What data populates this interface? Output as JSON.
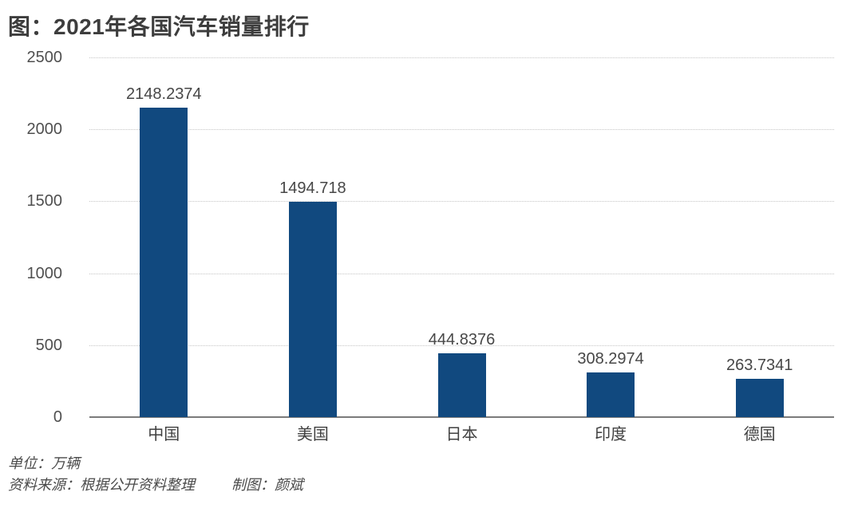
{
  "chart_data": {
    "type": "bar",
    "title": "图：2021年各国汽车销量排行",
    "categories": [
      "中国",
      "美国",
      "日本",
      "印度",
      "德国"
    ],
    "values": [
      2148.2374,
      1494.718,
      444.8376,
      308.2974,
      263.7341
    ],
    "value_labels": [
      "2148.2374",
      "1494.718",
      "444.8376",
      "308.2974",
      "263.7341"
    ],
    "xlabel": "",
    "ylabel": "",
    "ylim": [
      0,
      2500
    ],
    "yticks": [
      0,
      500,
      1000,
      1500,
      2000,
      2500
    ],
    "grid": "horizontal dotted gridlines, solid baseline at 0",
    "legend": "none",
    "bar_color": "#11497f"
  },
  "footer": {
    "unit": "单位：万辆",
    "source": "资料来源：根据公开资料整理",
    "credit": "制图：颜斌"
  },
  "colors": {
    "bar": "#11497f",
    "title_text": "#3d3d3d",
    "axis_text": "#4f4f4f",
    "gridline": "#c5c5c5",
    "baseline": "#7b7b7b",
    "background": "#ffffff"
  }
}
